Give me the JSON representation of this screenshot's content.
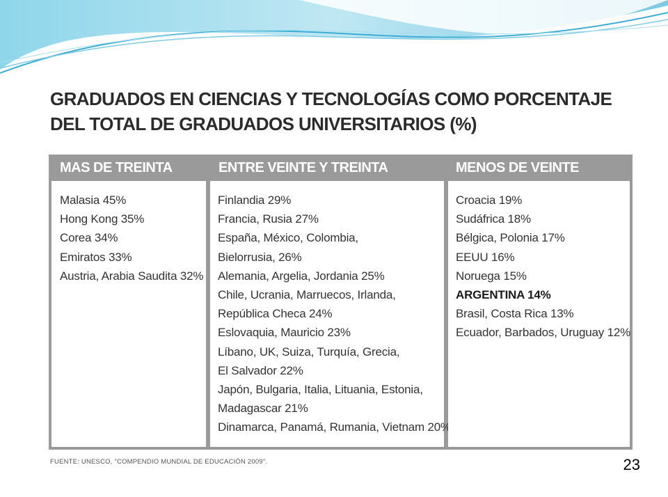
{
  "title": {
    "line1": "GRADUADOS EN CIENCIAS Y TECNOLOGÍAS COMO PORCENTAJE",
    "line2": "DEL TOTAL DE GRADUADOS UNIVERSITARIOS (%)"
  },
  "columns": [
    {
      "header": "MAS DE TREINTA",
      "items": [
        {
          "text": "Malasia 45%"
        },
        {
          "text": "Hong Kong 35%"
        },
        {
          "text": "Corea 34%"
        },
        {
          "text": "Emiratos 33%"
        },
        {
          "text": "Austria, Arabia Saudita 32%"
        }
      ]
    },
    {
      "header": "ENTRE VEINTE Y TREINTA",
      "items": [
        {
          "text": "Finlandia 29%"
        },
        {
          "text": "Francia, Rusia 27%"
        },
        {
          "text": "España, México, Colombia,"
        },
        {
          "text": "Bielorrusia, 26%"
        },
        {
          "text": "Alemania, Argelia, Jordania 25%"
        },
        {
          "text": "Chile, Ucrania, Marruecos, Irlanda,"
        },
        {
          "text": "República Checa 24%"
        },
        {
          "text": "Eslovaquia, Mauricio 23%"
        },
        {
          "text": "Líbano, UK, Suiza, Turquía, Grecia,"
        },
        {
          "text": "El Salvador 22%"
        },
        {
          "text": "Japón, Bulgaria, Italia, Lituania, Estonia,"
        },
        {
          "text": "Madagascar 21%"
        },
        {
          "text": "Dinamarca, Panamá, Rumania, Vietnam 20%"
        }
      ]
    },
    {
      "header": "MENOS DE VEINTE",
      "items": [
        {
          "text": "Croacia 19%"
        },
        {
          "text": "Sudáfrica 18%"
        },
        {
          "text": "Bélgica, Polonia 17%"
        },
        {
          "text": "EEUU 16%"
        },
        {
          "text": "Noruega 15%"
        },
        {
          "text": "ARGENTINA 14%",
          "highlight": true
        },
        {
          "text": "Brasil, Costa Rica 13%"
        },
        {
          "text": "Ecuador, Barbados, Uruguay 12%"
        }
      ]
    }
  ],
  "source": "FUENTE: UNESCO, \"COMPENDIO MUNDIAL DE EDUCACIÓN 2009\".",
  "page_number": "23",
  "colors": {
    "header_bg": "#9a9a9a",
    "header_text": "#ffffff",
    "banner_primary": "#5ec3df",
    "banner_light": "#bfe6f2"
  }
}
